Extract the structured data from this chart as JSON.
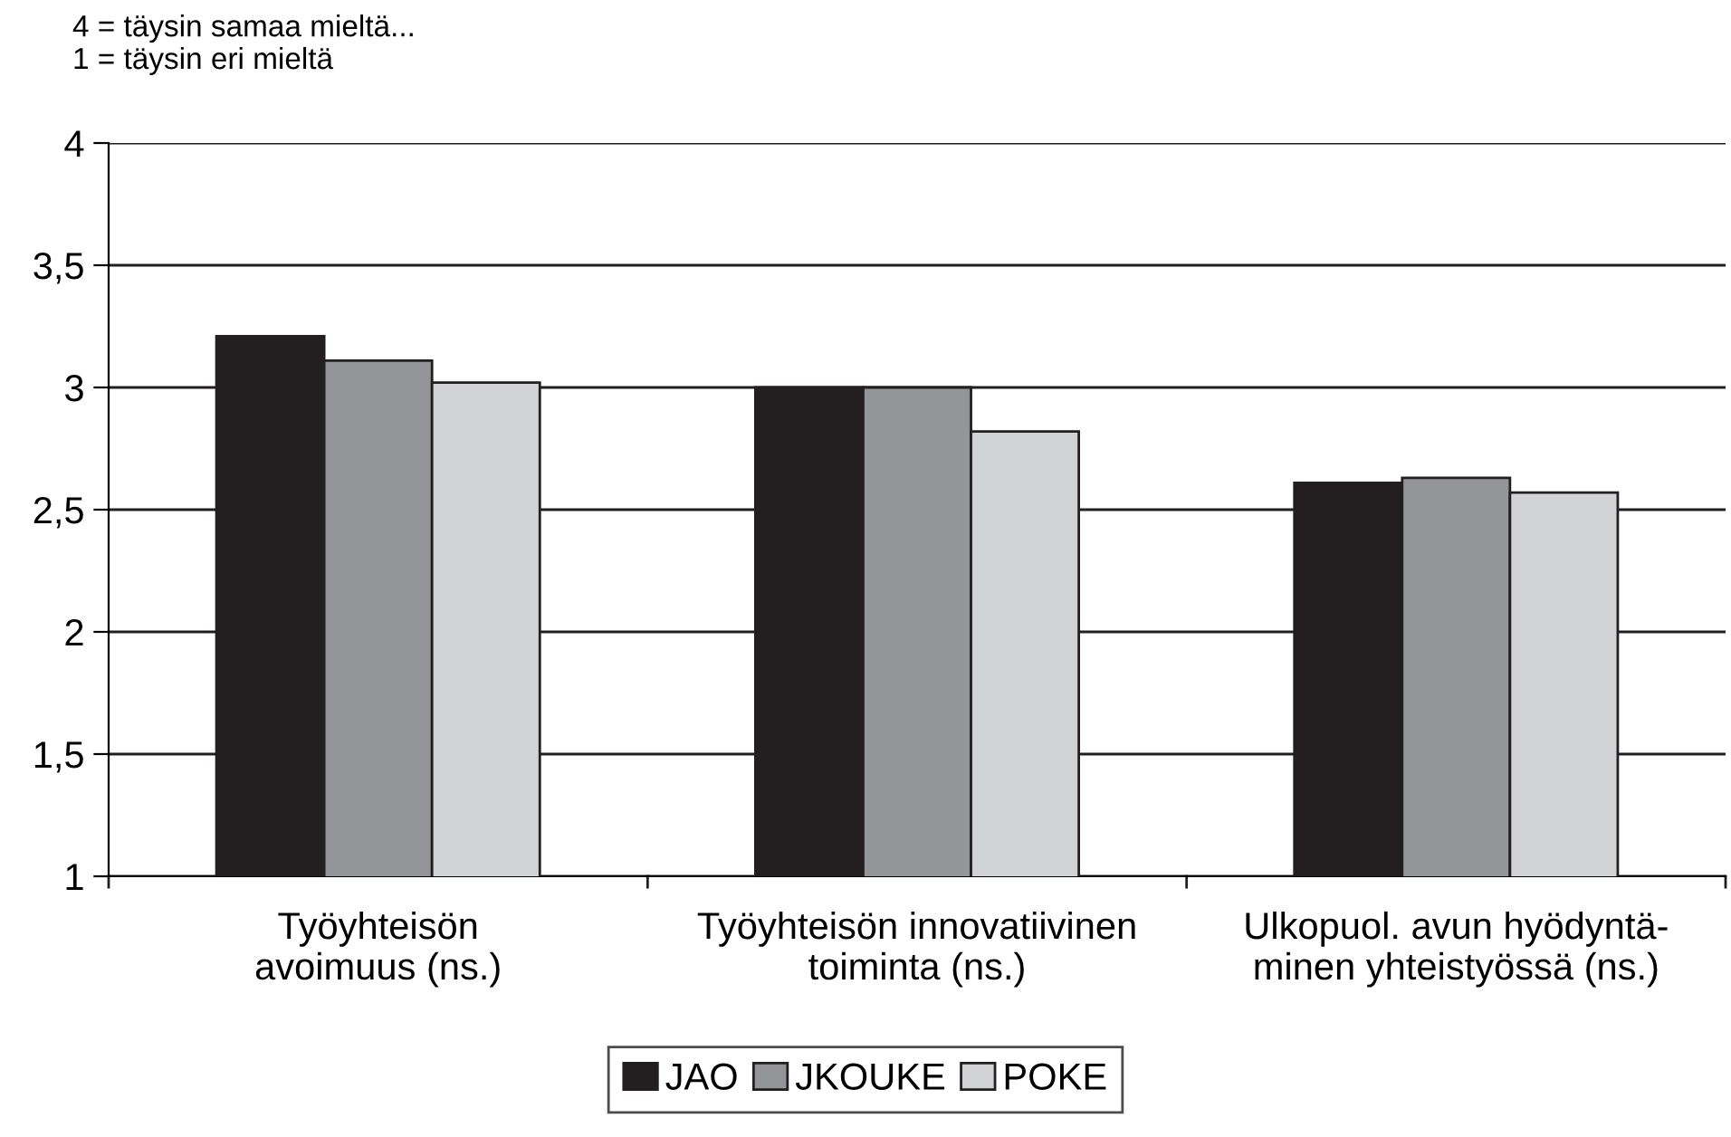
{
  "chart_data": {
    "type": "bar",
    "subtitle": "4 = täysin samaa mieltä...\n1 = täysin eri mieltä",
    "categories": [
      "Työyhteisön\navoimuus (ns.)",
      "Työyhteisön innovatiivinen\ntoiminta (ns.)",
      "Ulkopuol. avun hyödyntä-\nminen yhteistyössä (ns.)"
    ],
    "series": [
      {
        "name": "JAO",
        "color": "#231f20",
        "values": [
          3.21,
          3.0,
          2.61
        ]
      },
      {
        "name": "JKOUKE",
        "color": "#939598",
        "values": [
          3.11,
          3.0,
          2.63
        ]
      },
      {
        "name": "POKE",
        "color": "#d1d2d4",
        "values": [
          3.02,
          2.82,
          2.57
        ]
      }
    ],
    "ylim": [
      1,
      4
    ],
    "yticks": [
      {
        "value": 1,
        "label": "1"
      },
      {
        "value": 1.5,
        "label": "1,5"
      },
      {
        "value": 2,
        "label": "2"
      },
      {
        "value": 2.5,
        "label": "2,5"
      },
      {
        "value": 3,
        "label": "3"
      },
      {
        "value": 3.5,
        "label": "3,5"
      },
      {
        "value": 4,
        "label": "4"
      }
    ],
    "grid": "y",
    "legend": "bottom"
  }
}
